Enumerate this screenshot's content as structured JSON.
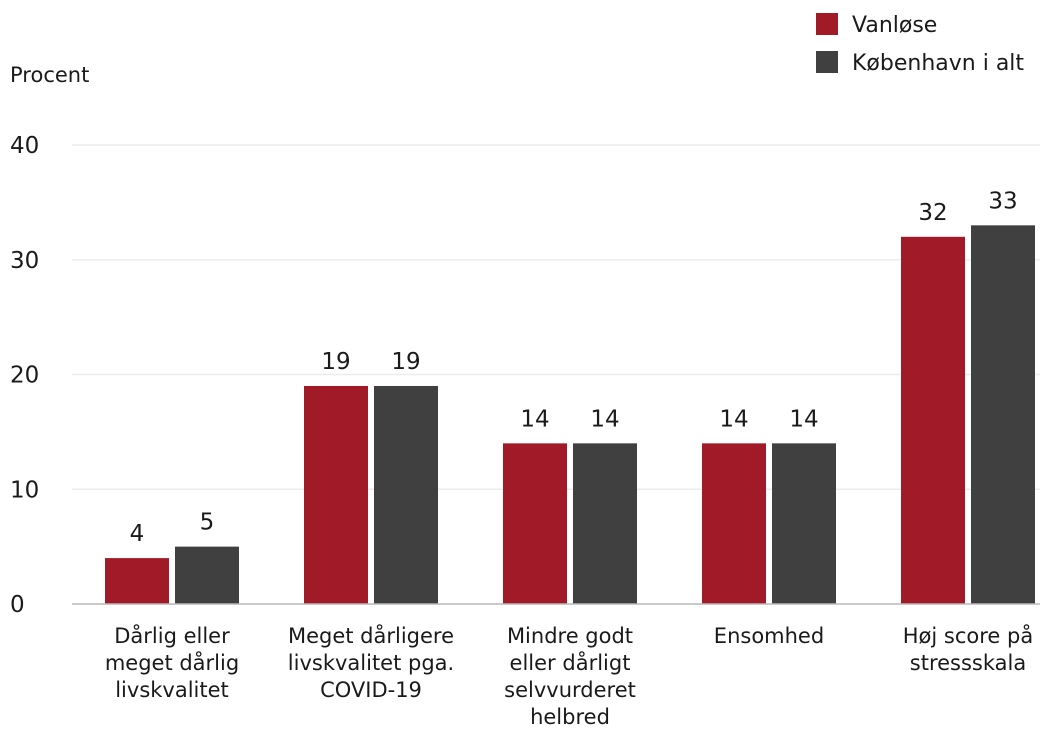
{
  "chart_data": {
    "type": "bar",
    "ylabel": "Procent",
    "xlabel": "",
    "ylim": [
      0,
      40
    ],
    "yticks": [
      0,
      10,
      20,
      30,
      40
    ],
    "grid": true,
    "legend_position": "top-right",
    "categories": [
      [
        "Dårlig eller",
        "meget dårlig",
        "livskvalitet"
      ],
      [
        "Meget dårligere",
        "livskvalitet pga.",
        "COVID-19"
      ],
      [
        "Mindre godt",
        "eller dårligt",
        "selvvurderet",
        "helbred"
      ],
      [
        "Ensomhed"
      ],
      [
        "Høj score på",
        "stressskala"
      ]
    ],
    "series": [
      {
        "name": "Vanløse",
        "color": "#A01A28",
        "values": [
          4,
          19,
          14,
          14,
          32
        ]
      },
      {
        "name": "København i alt",
        "color": "#404040",
        "values": [
          5,
          19,
          14,
          14,
          33
        ]
      }
    ]
  }
}
